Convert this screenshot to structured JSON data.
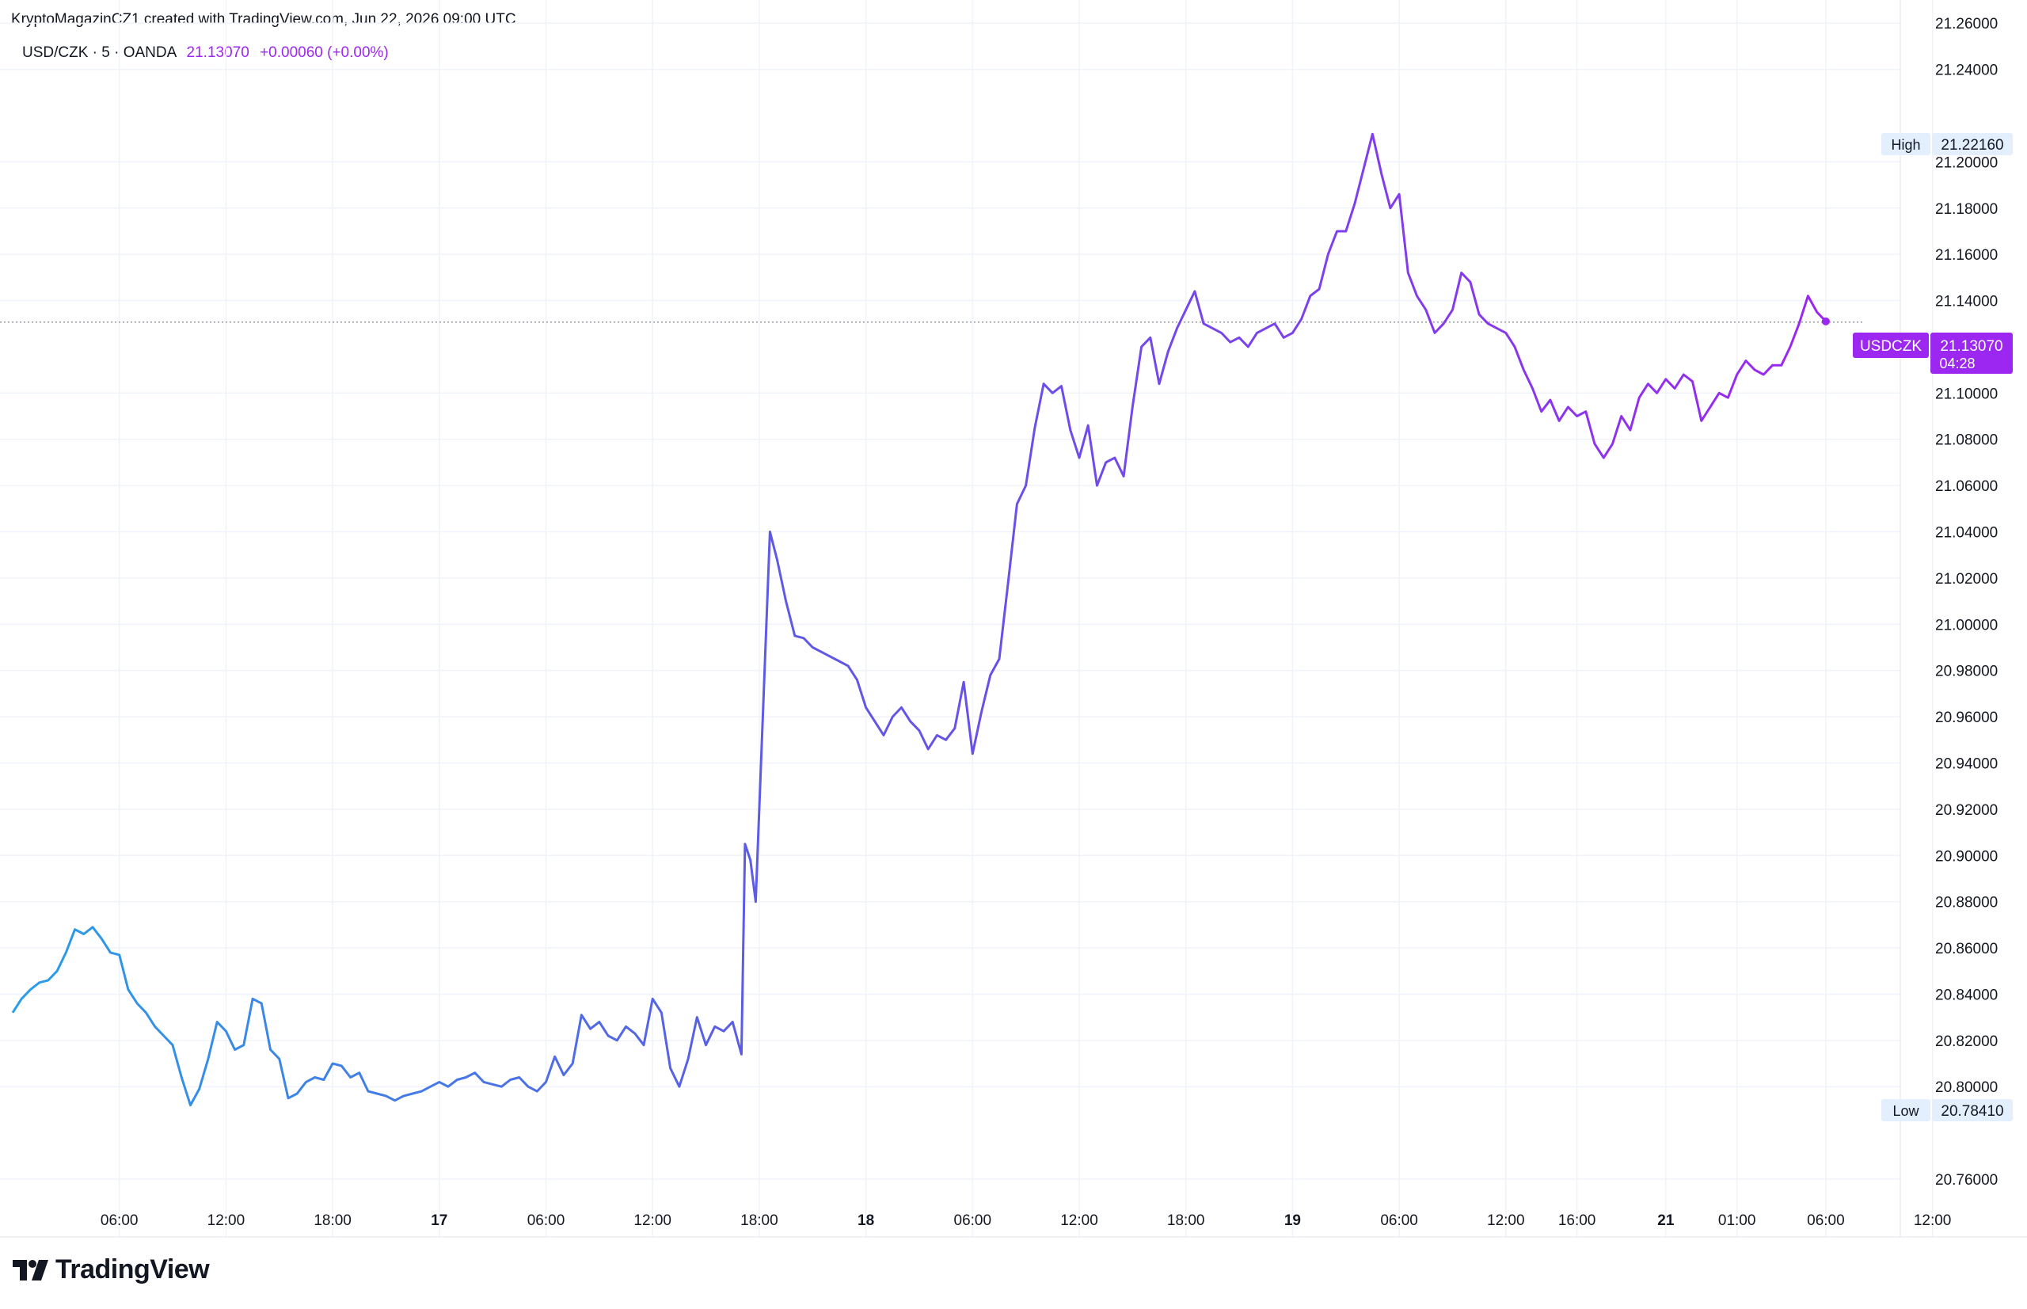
{
  "attribution": "KryptoMagazinCZ1 created with TradingView.com, Jun 22, 2026 09:00 UTC",
  "legend": {
    "symbol": "USD/CZK · 5 · OANDA",
    "last": "21.13070",
    "change": "+0.00060 (+0.00%)"
  },
  "brand": "TradingView",
  "colors": {
    "line_start": "#2a9ee8",
    "line_mid": "#5b5ce6",
    "line_end": "#9c27f0",
    "grid": "#f0f3fa",
    "text": "#131722",
    "badge_bg": "#e3effd",
    "price_tag": "#9c27f0"
  },
  "chart_data": {
    "type": "line",
    "title": "USD/CZK · 5 · OANDA",
    "xlabel": "",
    "ylabel": "",
    "grid": true,
    "yaxis_side": "right",
    "ylim": [
      20.735,
      21.27
    ],
    "y_ticks": [
      "21.26000",
      "21.24000",
      "21.20000",
      "21.18000",
      "21.16000",
      "21.14000",
      "21.10000",
      "21.08000",
      "21.06000",
      "21.04000",
      "21.02000",
      "21.00000",
      "20.98000",
      "20.96000",
      "20.94000",
      "20.92000",
      "20.90000",
      "20.88000",
      "20.86000",
      "20.84000",
      "20.82000",
      "20.80000",
      "20.76000"
    ],
    "x_ticks": [
      {
        "label": "06:00",
        "t": 6,
        "bold": false
      },
      {
        "label": "12:00",
        "t": 12,
        "bold": false
      },
      {
        "label": "18:00",
        "t": 18,
        "bold": false
      },
      {
        "label": "17",
        "t": 24,
        "bold": true
      },
      {
        "label": "06:00",
        "t": 30,
        "bold": false
      },
      {
        "label": "12:00",
        "t": 36,
        "bold": false
      },
      {
        "label": "18:00",
        "t": 42,
        "bold": false
      },
      {
        "label": "18",
        "t": 48,
        "bold": true
      },
      {
        "label": "06:00",
        "t": 54,
        "bold": false
      },
      {
        "label": "12:00",
        "t": 60,
        "bold": false
      },
      {
        "label": "18:00",
        "t": 66,
        "bold": false
      },
      {
        "label": "19",
        "t": 72,
        "bold": true
      },
      {
        "label": "06:00",
        "t": 78,
        "bold": false
      },
      {
        "label": "12:00",
        "t": 84,
        "bold": false
      },
      {
        "label": "16:00",
        "t": 88,
        "bold": false
      },
      {
        "label": "21",
        "t": 93,
        "bold": true
      },
      {
        "label": "01:00",
        "t": 97,
        "bold": false
      },
      {
        "label": "06:00",
        "t": 102,
        "bold": false
      },
      {
        "label": "12:00",
        "t": 108,
        "bold": false
      }
    ],
    "high": {
      "label": "High",
      "value": "21.22160"
    },
    "low": {
      "label": "Low",
      "value": "20.78410"
    },
    "current": {
      "label": "USDCZK",
      "value": "21.13070",
      "countdown": "04:28"
    },
    "series": [
      {
        "x_unit": "hours",
        "points": [
          [
            0,
            20.832
          ],
          [
            0.5,
            20.838
          ],
          [
            1,
            20.842
          ],
          [
            1.5,
            20.845
          ],
          [
            2,
            20.846
          ],
          [
            2.5,
            20.85
          ],
          [
            3,
            20.858
          ],
          [
            3.5,
            20.868
          ],
          [
            4,
            20.866
          ],
          [
            4.5,
            20.869
          ],
          [
            5,
            20.864
          ],
          [
            5.5,
            20.858
          ],
          [
            6,
            20.857
          ],
          [
            6.5,
            20.842
          ],
          [
            7,
            20.836
          ],
          [
            7.5,
            20.832
          ],
          [
            8,
            20.826
          ],
          [
            8.5,
            20.822
          ],
          [
            9,
            20.818
          ],
          [
            9.5,
            20.804
          ],
          [
            10,
            20.792
          ],
          [
            10.5,
            20.799
          ],
          [
            11,
            20.812
          ],
          [
            11.5,
            20.828
          ],
          [
            12,
            20.824
          ],
          [
            12.5,
            20.816
          ],
          [
            13,
            20.818
          ],
          [
            13.5,
            20.838
          ],
          [
            14,
            20.836
          ],
          [
            14.5,
            20.816
          ],
          [
            15,
            20.812
          ],
          [
            15.5,
            20.795
          ],
          [
            16,
            20.797
          ],
          [
            16.5,
            20.802
          ],
          [
            17,
            20.804
          ],
          [
            17.5,
            20.803
          ],
          [
            18,
            20.81
          ],
          [
            18.5,
            20.809
          ],
          [
            19,
            20.804
          ],
          [
            19.5,
            20.806
          ],
          [
            20,
            20.798
          ],
          [
            20.5,
            20.797
          ],
          [
            21,
            20.796
          ],
          [
            21.5,
            20.794
          ],
          [
            22,
            20.796
          ],
          [
            22.5,
            20.797
          ],
          [
            23,
            20.798
          ],
          [
            23.5,
            20.8
          ],
          [
            24,
            20.802
          ],
          [
            24.5,
            20.8
          ],
          [
            25,
            20.803
          ],
          [
            25.5,
            20.804
          ],
          [
            26,
            20.806
          ],
          [
            26.5,
            20.802
          ],
          [
            27,
            20.801
          ],
          [
            27.5,
            20.8
          ],
          [
            28,
            20.803
          ],
          [
            28.5,
            20.804
          ],
          [
            29,
            20.8
          ],
          [
            29.5,
            20.798
          ],
          [
            30,
            20.802
          ],
          [
            30.5,
            20.813
          ],
          [
            31,
            20.805
          ],
          [
            31.5,
            20.81
          ],
          [
            32,
            20.831
          ],
          [
            32.5,
            20.825
          ],
          [
            33,
            20.828
          ],
          [
            33.5,
            20.822
          ],
          [
            34,
            20.82
          ],
          [
            34.5,
            20.826
          ],
          [
            35,
            20.823
          ],
          [
            35.5,
            20.818
          ],
          [
            36,
            20.838
          ],
          [
            36.5,
            20.832
          ],
          [
            37,
            20.808
          ],
          [
            37.5,
            20.8
          ],
          [
            38,
            20.812
          ],
          [
            38.5,
            20.83
          ],
          [
            39,
            20.818
          ],
          [
            39.5,
            20.826
          ],
          [
            40,
            20.824
          ],
          [
            40.5,
            20.828
          ],
          [
            41,
            20.814
          ],
          [
            41.2,
            20.905
          ],
          [
            41.5,
            20.898
          ],
          [
            41.8,
            20.88
          ],
          [
            42.2,
            20.96
          ],
          [
            42.6,
            21.04
          ],
          [
            43,
            21.028
          ],
          [
            43.5,
            21.01
          ],
          [
            44,
            20.995
          ],
          [
            44.5,
            20.994
          ],
          [
            45,
            20.99
          ],
          [
            45.5,
            20.988
          ],
          [
            46,
            20.986
          ],
          [
            46.5,
            20.984
          ],
          [
            47,
            20.982
          ],
          [
            47.5,
            20.976
          ],
          [
            48,
            20.964
          ],
          [
            48.5,
            20.958
          ],
          [
            49,
            20.952
          ],
          [
            49.5,
            20.96
          ],
          [
            50,
            20.964
          ],
          [
            50.5,
            20.958
          ],
          [
            51,
            20.954
          ],
          [
            51.5,
            20.946
          ],
          [
            52,
            20.952
          ],
          [
            52.5,
            20.95
          ],
          [
            53,
            20.955
          ],
          [
            53.5,
            20.975
          ],
          [
            54,
            20.944
          ],
          [
            54.5,
            20.962
          ],
          [
            55,
            20.978
          ],
          [
            55.5,
            20.985
          ],
          [
            56,
            21.018
          ],
          [
            56.5,
            21.052
          ],
          [
            57,
            21.06
          ],
          [
            57.5,
            21.085
          ],
          [
            58,
            21.104
          ],
          [
            58.5,
            21.1
          ],
          [
            59,
            21.103
          ],
          [
            59.5,
            21.084
          ],
          [
            60,
            21.072
          ],
          [
            60.5,
            21.086
          ],
          [
            61,
            21.06
          ],
          [
            61.5,
            21.07
          ],
          [
            62,
            21.072
          ],
          [
            62.5,
            21.064
          ],
          [
            63,
            21.094
          ],
          [
            63.5,
            21.12
          ],
          [
            64,
            21.124
          ],
          [
            64.5,
            21.104
          ],
          [
            65,
            21.118
          ],
          [
            65.5,
            21.128
          ],
          [
            66,
            21.136
          ],
          [
            66.5,
            21.144
          ],
          [
            67,
            21.13
          ],
          [
            67.5,
            21.128
          ],
          [
            68,
            21.126
          ],
          [
            68.5,
            21.122
          ],
          [
            69,
            21.124
          ],
          [
            69.5,
            21.12
          ],
          [
            70,
            21.126
          ],
          [
            70.5,
            21.128
          ],
          [
            71,
            21.13
          ],
          [
            71.5,
            21.124
          ],
          [
            72,
            21.126
          ],
          [
            72.5,
            21.132
          ],
          [
            73,
            21.142
          ],
          [
            73.5,
            21.145
          ],
          [
            74,
            21.16
          ],
          [
            74.5,
            21.17
          ],
          [
            75,
            21.17
          ],
          [
            75.5,
            21.182
          ],
          [
            76,
            21.197
          ],
          [
            76.5,
            21.212
          ],
          [
            77,
            21.195
          ],
          [
            77.5,
            21.18
          ],
          [
            78,
            21.186
          ],
          [
            78.5,
            21.152
          ],
          [
            79,
            21.142
          ],
          [
            79.5,
            21.136
          ],
          [
            80,
            21.126
          ],
          [
            80.5,
            21.13
          ],
          [
            81,
            21.136
          ],
          [
            81.5,
            21.152
          ],
          [
            82,
            21.148
          ],
          [
            82.5,
            21.134
          ],
          [
            83,
            21.13
          ],
          [
            83.5,
            21.128
          ],
          [
            84,
            21.126
          ],
          [
            84.5,
            21.12
          ],
          [
            85,
            21.11
          ],
          [
            85.5,
            21.102
          ],
          [
            86,
            21.092
          ],
          [
            86.5,
            21.097
          ],
          [
            87,
            21.088
          ],
          [
            87.5,
            21.094
          ],
          [
            88,
            21.09
          ],
          [
            88.5,
            21.092
          ],
          [
            89,
            21.078
          ],
          [
            89.5,
            21.072
          ],
          [
            90,
            21.078
          ],
          [
            90.5,
            21.09
          ],
          [
            91,
            21.084
          ],
          [
            91.5,
            21.098
          ],
          [
            92,
            21.104
          ],
          [
            92.5,
            21.1
          ],
          [
            93,
            21.106
          ],
          [
            93.5,
            21.102
          ],
          [
            94,
            21.108
          ],
          [
            94.5,
            21.105
          ],
          [
            95,
            21.088
          ],
          [
            95.5,
            21.094
          ],
          [
            96,
            21.1
          ],
          [
            96.5,
            21.098
          ],
          [
            97,
            21.108
          ],
          [
            97.5,
            21.114
          ],
          [
            98,
            21.11
          ],
          [
            98.5,
            21.108
          ],
          [
            99,
            21.112
          ],
          [
            99.5,
            21.112
          ],
          [
            100,
            21.12
          ],
          [
            100.5,
            21.13
          ],
          [
            101,
            21.142
          ],
          [
            101.5,
            21.135
          ],
          [
            102,
            21.131
          ]
        ]
      }
    ]
  }
}
